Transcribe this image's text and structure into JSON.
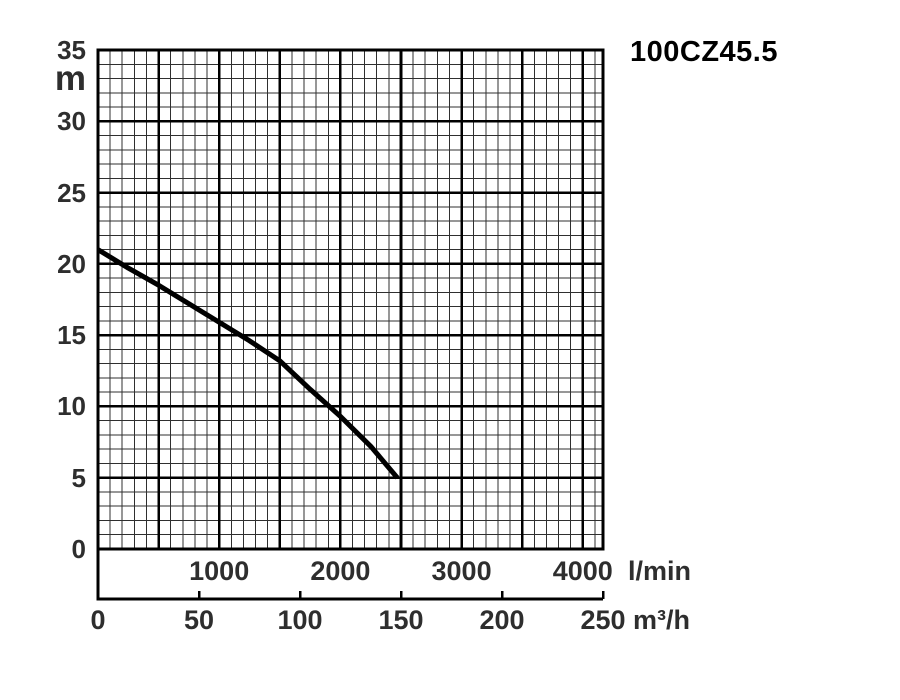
{
  "title": "100CZ45.5",
  "chart_data": {
    "type": "line",
    "title": "100CZ45.5",
    "grid": "on",
    "legend_position": "none",
    "y_axis": {
      "unit": "m",
      "range": [
        0,
        35
      ],
      "minor_step": 1,
      "major_step": 5,
      "tick_labels": [
        35,
        30,
        25,
        20,
        15,
        10,
        5,
        0
      ]
    },
    "x_axis_primary": {
      "unit": "l/min",
      "range": [
        0,
        4167
      ],
      "minor_step": 100,
      "major_step": 500,
      "tick_labels": [
        1000,
        2000,
        3000,
        4000
      ]
    },
    "x_axis_secondary": {
      "unit": "m³/h",
      "range": [
        0,
        250
      ],
      "tick_step": 50,
      "tick_labels": [
        0,
        50,
        100,
        150,
        200,
        250
      ]
    },
    "series": [
      {
        "name": "head-flow curve",
        "q_lmin": [
          0,
          250,
          500,
          750,
          1000,
          1250,
          1500,
          1750,
          2000,
          2250,
          2470
        ],
        "h_m": [
          21.0,
          19.7,
          18.5,
          17.2,
          15.9,
          14.6,
          13.2,
          11.2,
          9.3,
          7.2,
          5.0
        ]
      }
    ]
  },
  "colors": {
    "curve": "#000000",
    "grid_minor": "#2f2f2f",
    "grid_major": "#000000",
    "border": "#000000",
    "tick_label": "#2e2e2e",
    "title": "#000000",
    "background": "#ffffff"
  }
}
